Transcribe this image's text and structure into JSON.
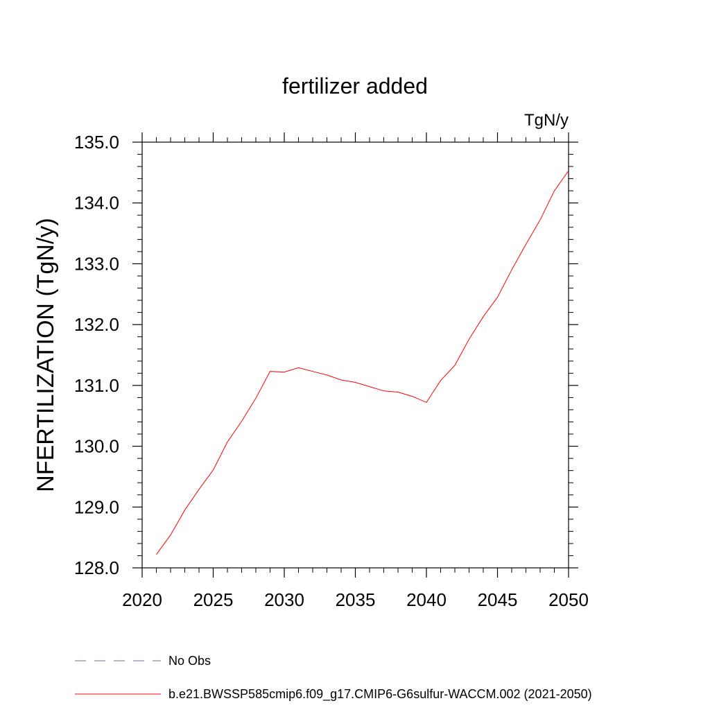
{
  "chart_data": {
    "type": "line",
    "title": "fertilizer added",
    "units": "TgN/y",
    "xlabel": "",
    "ylabel": "NFERTILIZATION  (TgN/y)",
    "xlim": [
      2020,
      2050
    ],
    "ylim": [
      128.0,
      135.0
    ],
    "x_ticks": [
      2020,
      2025,
      2030,
      2035,
      2040,
      2045,
      2050
    ],
    "y_ticks": [
      128.0,
      129.0,
      130.0,
      131.0,
      132.0,
      133.0,
      134.0,
      135.0
    ],
    "y_tick_labels": [
      "128.0",
      "129.0",
      "130.0",
      "131.0",
      "132.0",
      "133.0",
      "134.0",
      "135.0"
    ],
    "series": [
      {
        "name": "b.e21.BWSSP585cmip6.f09_g17.CMIP6-G6sulfur-WACCM.002 (2021-2050)",
        "color": "#ff0000",
        "x": [
          2021,
          2022,
          2023,
          2024,
          2025,
          2026,
          2027,
          2028,
          2029,
          2030,
          2031,
          2032,
          2033,
          2034,
          2035,
          2036,
          2037,
          2038,
          2039,
          2040,
          2041,
          2042,
          2043,
          2044,
          2045,
          2046,
          2047,
          2048,
          2049,
          2050
        ],
        "y": [
          128.22,
          128.54,
          128.95,
          129.29,
          129.61,
          130.07,
          130.41,
          130.79,
          131.23,
          131.22,
          131.29,
          131.23,
          131.17,
          131.09,
          131.05,
          130.98,
          130.91,
          130.89,
          130.82,
          130.72,
          131.08,
          131.33,
          131.76,
          132.13,
          132.45,
          132.9,
          133.32,
          133.72,
          134.2,
          134.53
        ]
      }
    ],
    "legend": {
      "placement": "bottom-left",
      "entries": [
        {
          "label": "No Obs",
          "color": "#7766aa",
          "style": "dashed"
        },
        {
          "label": "b.e21.BWSSP585cmip6.f09_g17.CMIP6-G6sulfur-WACCM.002 (2021-2050)",
          "color": "#ff0000",
          "style": "solid"
        }
      ]
    },
    "grid": false
  }
}
